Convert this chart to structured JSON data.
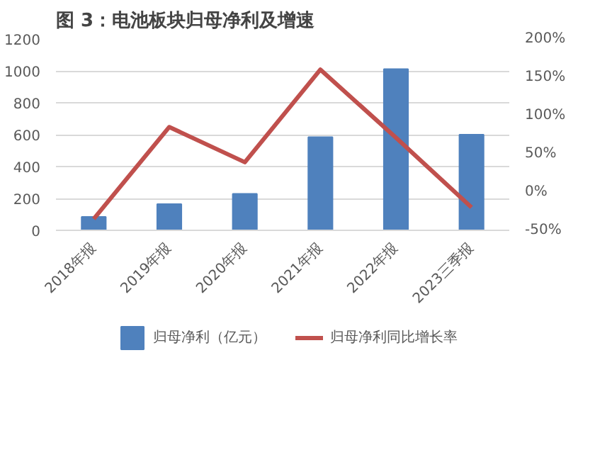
{
  "chart_data": {
    "type": "bar",
    "title": "图 3：电池板块归母净利及增速",
    "categories": [
      "2018年报",
      "2019年报",
      "2020年报",
      "2021年报",
      "2022年报",
      "2023三季报"
    ],
    "series": [
      {
        "name": "归母净利（亿元）",
        "color": "#4f81bd",
        "values": [
          84,
          164,
          229,
          585,
          1011,
          600
        ]
      },
      {
        "name": "归母净利同比增长率",
        "type": "line",
        "axis": "y2",
        "color": "#c0504d",
        "values": [
          -35,
          85,
          39,
          160,
          71,
          -20
        ]
      }
    ],
    "ylim": [
      0,
      1200
    ],
    "yticks": [
      0,
      200,
      400,
      600,
      800,
      1000,
      1200
    ],
    "y2lim": [
      -50,
      200
    ],
    "y2ticks": [
      {
        "value": -50,
        "label": "-50%"
      },
      {
        "value": 0,
        "label": "0%"
      },
      {
        "value": 50,
        "label": "50%"
      },
      {
        "value": 100,
        "label": "100%"
      },
      {
        "value": 150,
        "label": "150%"
      },
      {
        "value": 200,
        "label": "200%"
      }
    ],
    "grid": "y",
    "legend": "bottom"
  }
}
